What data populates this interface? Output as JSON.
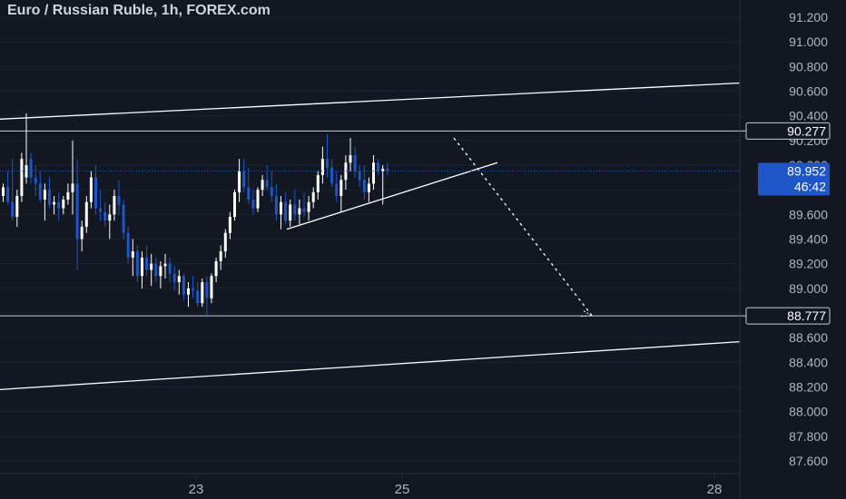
{
  "chart_data": {
    "type": "candlestick",
    "title": "Euro / Russian Ruble, 1h, FOREX.com",
    "y_ticks": [
      "91.200",
      "91.000",
      "90.800",
      "90.600",
      "90.400",
      "90.200",
      "90.000",
      "89.800",
      "89.600",
      "89.400",
      "89.200",
      "89.000",
      "88.800",
      "88.600",
      "88.400",
      "88.200",
      "88.000",
      "87.800",
      "87.600"
    ],
    "x_ticks": [
      "23",
      "25",
      "28"
    ],
    "ylim": [
      87.52,
      91.32
    ],
    "price_tags": {
      "resistance": "90.277",
      "current": "89.952",
      "countdown": "46:42",
      "support": "88.777"
    },
    "horizontal_levels": [
      90.277,
      88.777
    ],
    "candles": [
      [
        89.75,
        89.85,
        89.7,
        89.82
      ],
      [
        89.82,
        89.95,
        89.68,
        89.7
      ],
      [
        89.7,
        90.05,
        89.55,
        89.58
      ],
      [
        89.58,
        89.8,
        89.5,
        89.75
      ],
      [
        89.75,
        90.1,
        89.7,
        90.05
      ],
      [
        89.9,
        90.42,
        89.85,
        90.0
      ],
      [
        90.05,
        90.1,
        89.85,
        89.9
      ],
      [
        89.9,
        90.0,
        89.75,
        89.85
      ],
      [
        89.85,
        89.95,
        89.7,
        89.72
      ],
      [
        89.72,
        89.85,
        89.55,
        89.8
      ],
      [
        89.8,
        89.9,
        89.65,
        89.68
      ],
      [
        89.68,
        89.75,
        89.6,
        89.7
      ],
      [
        89.7,
        89.78,
        89.55,
        89.65
      ],
      [
        89.65,
        89.75,
        89.6,
        89.72
      ],
      [
        89.72,
        89.85,
        89.68,
        89.78
      ],
      [
        89.78,
        90.2,
        89.6,
        89.85
      ],
      [
        89.85,
        90.05,
        89.15,
        89.4
      ],
      [
        89.4,
        89.55,
        89.3,
        89.5
      ],
      [
        89.5,
        89.75,
        89.45,
        89.7
      ],
      [
        89.7,
        89.95,
        89.65,
        89.9
      ],
      [
        89.9,
        90.0,
        89.6,
        89.65
      ],
      [
        89.65,
        89.8,
        89.55,
        89.62
      ],
      [
        89.62,
        89.7,
        89.5,
        89.55
      ],
      [
        89.55,
        89.68,
        89.4,
        89.6
      ],
      [
        89.6,
        89.8,
        89.55,
        89.75
      ],
      [
        89.75,
        89.88,
        89.6,
        89.68
      ],
      [
        89.68,
        89.72,
        89.4,
        89.45
      ],
      [
        89.45,
        89.5,
        89.2,
        89.25
      ],
      [
        89.25,
        89.4,
        89.1,
        89.3
      ],
      [
        89.3,
        89.35,
        89.05,
        89.1
      ],
      [
        89.1,
        89.3,
        89.0,
        89.25
      ],
      [
        89.25,
        89.35,
        89.1,
        89.15
      ],
      [
        89.15,
        89.28,
        89.02,
        89.2
      ],
      [
        89.2,
        89.25,
        89.05,
        89.1
      ],
      [
        89.1,
        89.22,
        89.0,
        89.18
      ],
      [
        89.18,
        89.28,
        89.08,
        89.2
      ],
      [
        89.2,
        89.25,
        89.05,
        89.12
      ],
      [
        89.12,
        89.18,
        88.98,
        89.05
      ],
      [
        89.05,
        89.15,
        88.95,
        89.1
      ],
      [
        89.1,
        89.12,
        88.9,
        88.95
      ],
      [
        88.95,
        89.05,
        88.85,
        89.0
      ],
      [
        89.0,
        89.1,
        88.92,
        88.98
      ],
      [
        88.98,
        89.05,
        88.85,
        88.88
      ],
      [
        88.88,
        89.08,
        88.85,
        89.05
      ],
      [
        89.05,
        89.1,
        88.78,
        88.92
      ],
      [
        88.92,
        89.12,
        88.88,
        89.1
      ],
      [
        89.1,
        89.25,
        89.05,
        89.22
      ],
      [
        89.22,
        89.35,
        89.15,
        89.3
      ],
      [
        89.3,
        89.48,
        89.25,
        89.45
      ],
      [
        89.45,
        89.62,
        89.4,
        89.58
      ],
      [
        89.58,
        89.8,
        89.55,
        89.78
      ],
      [
        89.78,
        90.05,
        89.7,
        89.95
      ],
      [
        89.95,
        90.05,
        89.78,
        89.82
      ],
      [
        89.82,
        89.98,
        89.68,
        89.72
      ],
      [
        89.72,
        89.8,
        89.6,
        89.65
      ],
      [
        89.65,
        89.82,
        89.62,
        89.8
      ],
      [
        89.8,
        89.92,
        89.75,
        89.88
      ],
      [
        89.88,
        90.0,
        89.8,
        89.82
      ],
      [
        89.82,
        89.95,
        89.7,
        89.75
      ],
      [
        89.75,
        89.85,
        89.55,
        89.6
      ],
      [
        89.6,
        89.75,
        89.48,
        89.7
      ],
      [
        89.7,
        89.78,
        89.52,
        89.55
      ],
      [
        89.55,
        89.72,
        89.5,
        89.68
      ],
      [
        89.68,
        89.8,
        89.55,
        89.6
      ],
      [
        89.6,
        89.72,
        89.52,
        89.65
      ],
      [
        89.65,
        89.78,
        89.58,
        89.62
      ],
      [
        89.62,
        89.75,
        89.55,
        89.7
      ],
      [
        89.7,
        89.82,
        89.65,
        89.78
      ],
      [
        89.78,
        89.95,
        89.72,
        89.92
      ],
      [
        89.92,
        90.15,
        89.85,
        90.05
      ],
      [
        90.05,
        90.25,
        89.9,
        89.98
      ],
      [
        89.98,
        90.05,
        89.82,
        89.85
      ],
      [
        89.85,
        89.95,
        89.7,
        89.75
      ],
      [
        89.75,
        89.92,
        89.62,
        89.88
      ],
      [
        89.88,
        90.08,
        89.8,
        90.02
      ],
      [
        90.02,
        90.22,
        89.95,
        90.08
      ],
      [
        90.08,
        90.15,
        89.9,
        89.95
      ],
      [
        89.95,
        90.0,
        89.82,
        89.88
      ],
      [
        89.88,
        90.0,
        89.72,
        89.78
      ],
      [
        89.78,
        89.9,
        89.7,
        89.85
      ],
      [
        89.85,
        90.08,
        89.8,
        90.02
      ],
      [
        90.02,
        90.05,
        89.92,
        89.95
      ],
      [
        89.95,
        90.0,
        89.68,
        89.97
      ],
      [
        89.97,
        90.02,
        89.92,
        89.952
      ]
    ],
    "drawings": {
      "upper_channel": [
        [
          0,
          90.373
        ],
        [
          815,
          90.666
        ]
      ],
      "lower_channel": [
        [
          0,
          88.179
        ],
        [
          815,
          88.567
        ]
      ],
      "triangle_support": [
        [
          316,
          89.48
        ],
        [
          548,
          90.02
        ]
      ],
      "projection_dotted": [
        [
          500,
          90.22
        ],
        [
          652,
          88.78
        ]
      ]
    }
  }
}
